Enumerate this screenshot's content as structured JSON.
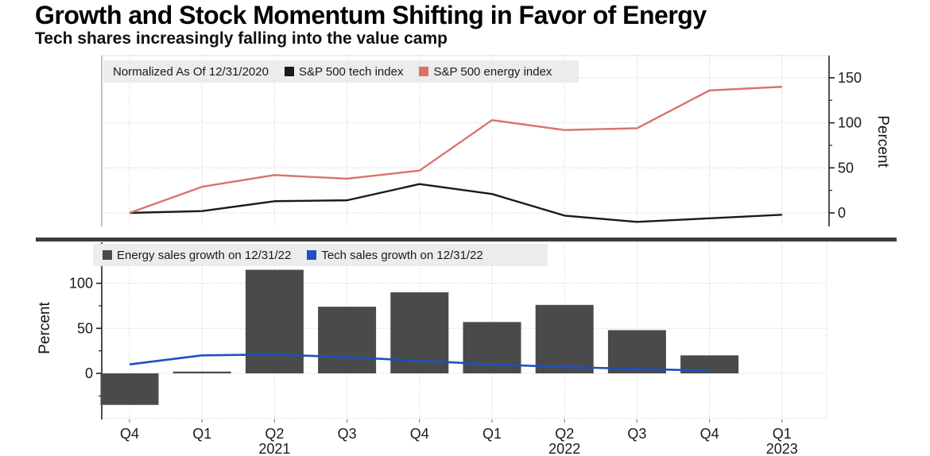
{
  "header": {
    "title": "Growth and Stock Momentum Shifting in Favor of Energy",
    "subtitle": "Tech shares increasingly falling into the value camp"
  },
  "colors": {
    "divider": "#3d3d3d",
    "legend_bg": "#ececec",
    "grid": "#c8c8c8",
    "axis": "#222222",
    "tick_label": "#1a1a1a"
  },
  "chart_data": [
    {
      "type": "line",
      "panel": "top",
      "note": "Normalized As Of 12/31/2020",
      "categories": [
        "Q4 2020",
        "Q1 2021",
        "Q2 2021",
        "Q3 2021",
        "Q4 2021",
        "Q1 2022",
        "Q2 2022",
        "Q3 2022",
        "Q4 2022",
        "Q1 2023"
      ],
      "series": [
        {
          "name": "S&P 500 tech index",
          "color": "#1a1a1a",
          "values": [
            0,
            2,
            13,
            14,
            32,
            21,
            -3,
            -10,
            -6,
            -2
          ]
        },
        {
          "name": "S&P 500 energy index",
          "color": "#d9736a",
          "values": [
            0,
            29,
            42,
            38,
            47,
            103,
            92,
            94,
            136,
            140
          ]
        }
      ],
      "ylabel": "Percent",
      "yticks": [
        0,
        50,
        100,
        150
      ],
      "yminor": [
        25,
        75,
        125
      ],
      "ylim": [
        -15,
        172
      ],
      "grid": true,
      "legend_position": "top-left-inside",
      "y_axis_side": "right"
    },
    {
      "type": "bar",
      "panel": "bottom",
      "categories": [
        "Q4 2020",
        "Q1 2021",
        "Q2 2021",
        "Q3 2021",
        "Q4 2021",
        "Q1 2022",
        "Q2 2022",
        "Q3 2022",
        "Q4 2022",
        "Q1 2023"
      ],
      "x_tick_labels": [
        "Q4",
        "Q1",
        "Q2",
        "Q3",
        "Q4",
        "Q1",
        "Q2",
        "Q3",
        "Q4",
        "Q1"
      ],
      "year_labels": [
        {
          "text": "2021",
          "index": 2
        },
        {
          "text": "2022",
          "index": 6
        },
        {
          "text": "2023",
          "index": 9
        }
      ],
      "series": [
        {
          "name": "Energy sales growth on 12/31/22",
          "kind": "bar",
          "color": "#4a4a4a",
          "values": [
            -35,
            2,
            115,
            74,
            90,
            57,
            76,
            48,
            20,
            null
          ]
        },
        {
          "name": "Tech sales growth on 12/31/22",
          "kind": "line",
          "color": "#1f4fc0",
          "values": [
            10,
            20,
            21,
            18,
            14,
            10,
            7,
            5,
            3,
            null
          ]
        }
      ],
      "ylabel": "Percent",
      "yticks": [
        0,
        50,
        100
      ],
      "yminor": [
        -25,
        25,
        75,
        125
      ],
      "ylim": [
        -51,
        146
      ],
      "grid": true,
      "y_axis_side": "left"
    }
  ]
}
